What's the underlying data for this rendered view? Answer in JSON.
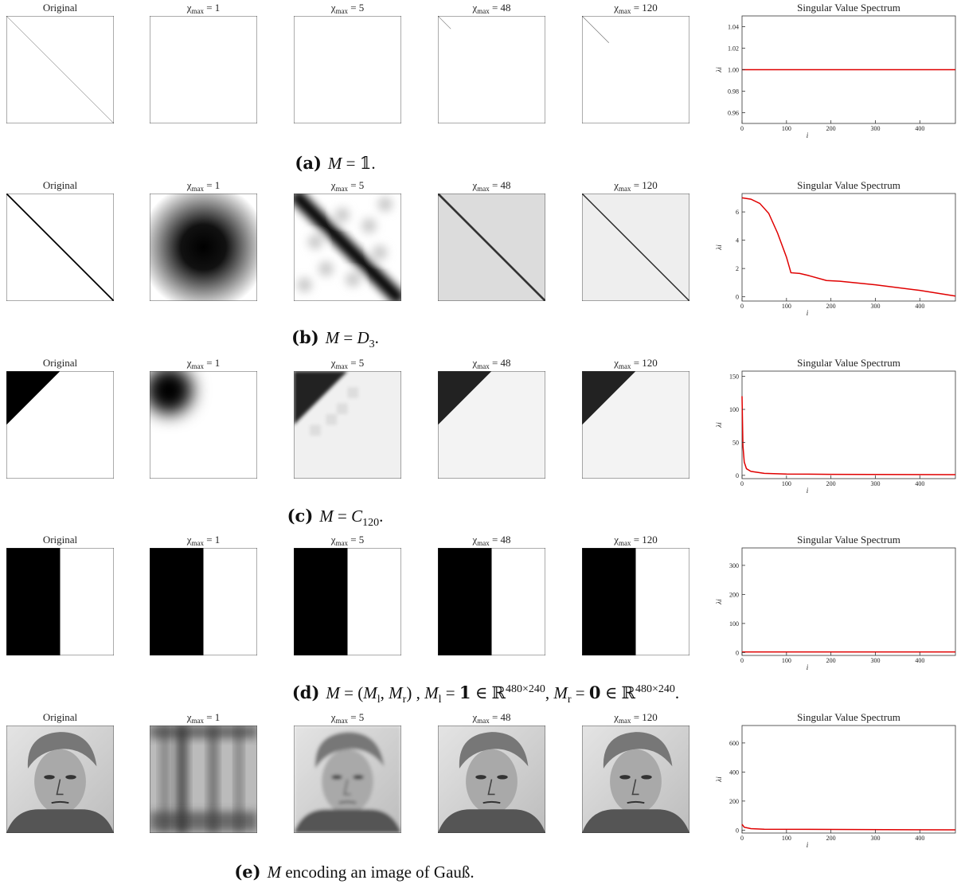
{
  "rows": [
    {
      "titles": [
        "Original",
        [
          "χ",
          "max",
          " = 1"
        ],
        [
          "χ",
          "max",
          " = 5"
        ],
        [
          "χ",
          "max",
          " = 48"
        ],
        [
          "χ",
          "max",
          " = 120"
        ]
      ],
      "caption": [
        "(a)",
        "M",
        " = 𝟙."
      ]
    },
    {
      "titles": [
        "Original",
        [
          "χ",
          "max",
          " = 1"
        ],
        [
          "χ",
          "max",
          " = 5"
        ],
        [
          "χ",
          "max",
          " = 48"
        ],
        [
          "χ",
          "max",
          " = 120"
        ]
      ],
      "caption": [
        "(b)",
        "M",
        " = ",
        "D",
        "3",
        "."
      ]
    },
    {
      "titles": [
        "Original",
        [
          "χ",
          "max",
          " = 1"
        ],
        [
          "χ",
          "max",
          " = 5"
        ],
        [
          "χ",
          "max",
          " = 48"
        ],
        [
          "χ",
          "max",
          " = 120"
        ]
      ],
      "caption": [
        "(c)",
        "M",
        " = ",
        "C",
        "120",
        "."
      ]
    },
    {
      "titles": [
        "Original",
        [
          "χ",
          "max",
          " = 1"
        ],
        [
          "χ",
          "max",
          " = 5"
        ],
        [
          "χ",
          "max",
          " = 48"
        ],
        [
          "χ",
          "max",
          " = 120"
        ]
      ],
      "caption": [
        "(d)",
        "M",
        " = (",
        "M",
        "l",
        ", ",
        "M",
        "r",
        ") , ",
        "M",
        "l",
        " = ",
        "1",
        " ∈ ℝ",
        "480×240",
        ", ",
        "M",
        "r",
        " = ",
        "0",
        " ∈ ℝ",
        "480×240",
        "."
      ]
    },
    {
      "titles": [
        "Original",
        [
          "χ",
          "max",
          " = 1"
        ],
        [
          "χ",
          "max",
          " = 5"
        ],
        [
          "χ",
          "max",
          " = 48"
        ],
        [
          "χ",
          "max",
          " = 120"
        ]
      ],
      "caption": [
        "(e)",
        "M",
        " encoding an image of Gauß."
      ]
    }
  ],
  "chart_data": [
    {
      "type": "line",
      "title": "Singular Value Spectrum",
      "x_label": "i",
      "y_label": "λi",
      "color": "#e00000",
      "x": [
        0,
        480
      ],
      "values": [
        1,
        1
      ],
      "xlim": [
        0,
        480
      ],
      "xticks": [
        0,
        100,
        200,
        300,
        400
      ],
      "ylim": [
        0.95,
        1.05
      ],
      "yticks": [
        {
          "value": 0.96,
          "label": "0.96"
        },
        {
          "value": 0.98,
          "label": "0.98"
        },
        {
          "value": 1,
          "label": "1.00"
        },
        {
          "value": 1.02,
          "label": "1.02"
        },
        {
          "value": 1.04,
          "label": "1.04"
        }
      ]
    },
    {
      "type": "line",
      "title": "Singular Value Spectrum",
      "x_label": "i",
      "y_label": "λi",
      "color": "#e00000",
      "x": [
        0,
        20,
        40,
        60,
        80,
        100,
        110,
        130,
        150,
        190,
        220,
        300,
        400,
        480
      ],
      "values": [
        7.0,
        6.9,
        6.6,
        5.9,
        4.5,
        2.8,
        1.7,
        1.65,
        1.5,
        1.15,
        1.1,
        0.85,
        0.45,
        0.05
      ],
      "xlim": [
        0,
        480
      ],
      "xticks": [
        0,
        100,
        200,
        300,
        400
      ],
      "ylim": [
        -0.3,
        7.3
      ],
      "yticks": [
        0,
        2,
        4,
        6
      ]
    },
    {
      "type": "line",
      "title": "Singular Value Spectrum",
      "x_label": "i",
      "y_label": "λi",
      "color": "#e00000",
      "x": [
        0,
        2,
        5,
        10,
        20,
        50,
        100,
        200,
        480
      ],
      "values": [
        120,
        45,
        20,
        10,
        6,
        3,
        2,
        1.5,
        1
      ],
      "xlim": [
        0,
        480
      ],
      "xticks": [
        0,
        100,
        200,
        300,
        400
      ],
      "ylim": [
        -5,
        158
      ],
      "yticks": [
        0,
        50,
        100,
        150
      ]
    },
    {
      "type": "line",
      "title": "Singular Value Spectrum",
      "x_label": "i",
      "y_label": "λi",
      "color": "#e00000",
      "x": [
        0,
        480
      ],
      "values": [
        2,
        2
      ],
      "xlim": [
        0,
        480
      ],
      "xticks": [
        0,
        100,
        200,
        300,
        400
      ],
      "ylim": [
        -10,
        360
      ],
      "yticks": [
        0,
        100,
        200,
        300
      ]
    },
    {
      "type": "line",
      "title": "Singular Value Spectrum",
      "x_label": "i",
      "y_label": "λi",
      "color": "#e00000",
      "x": [
        0,
        5,
        20,
        50,
        480
      ],
      "values": [
        40,
        20,
        10,
        6,
        2
      ],
      "xlim": [
        0,
        480
      ],
      "xticks": [
        0,
        100,
        200,
        300,
        400
      ],
      "ylim": [
        -20,
        720
      ],
      "yticks": [
        0,
        200,
        400,
        600
      ]
    }
  ]
}
